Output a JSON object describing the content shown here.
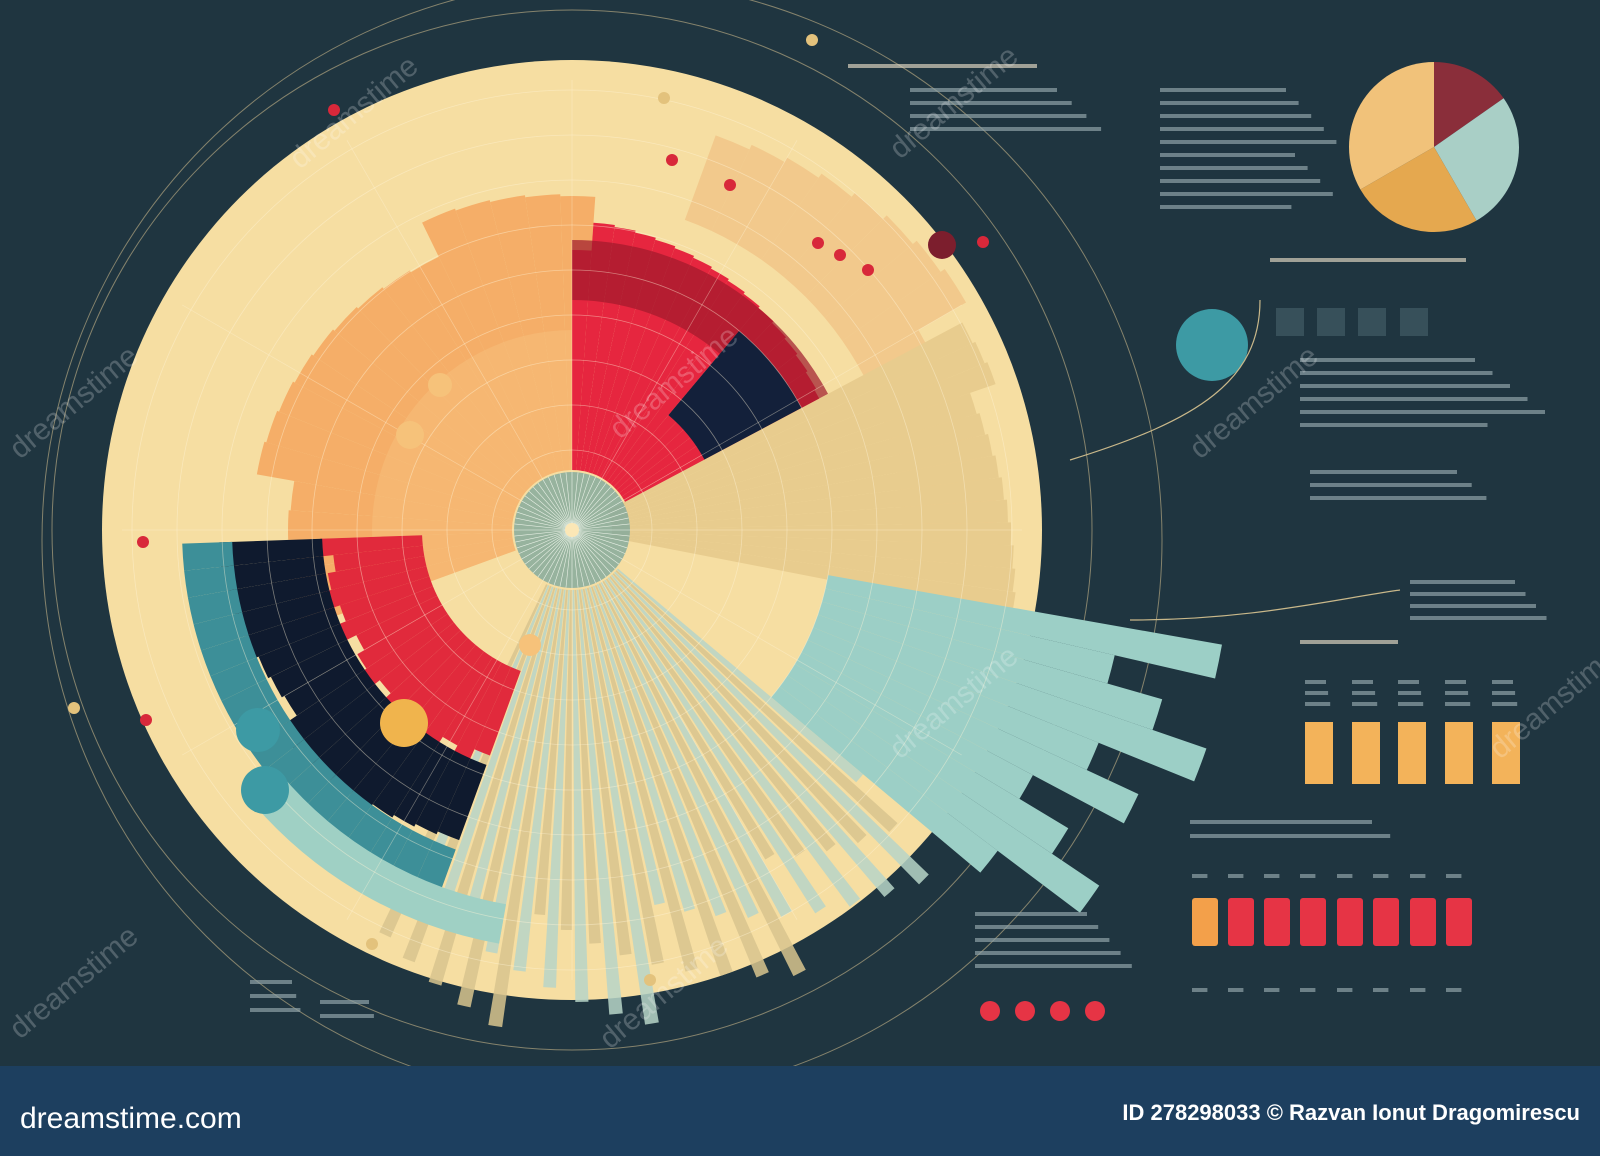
{
  "watermark": "dreamstime",
  "footer": {
    "site": "dreamstime.com",
    "credit": "ID 278298033 © Razvan Ionut Dragomirescu"
  }
}
